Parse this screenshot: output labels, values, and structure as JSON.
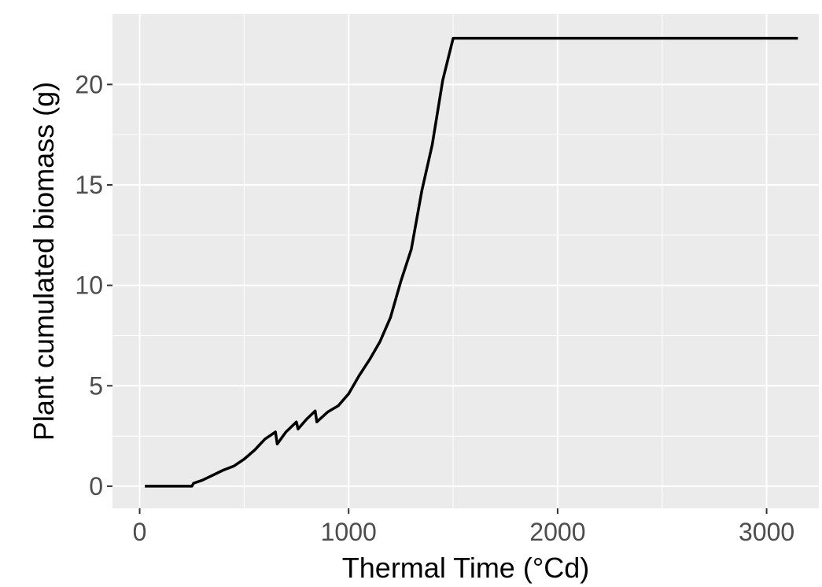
{
  "chart_data": {
    "type": "line",
    "title": "",
    "xlabel": "Thermal Time (°Cd)",
    "ylabel": "Plant cumulated biomass (g)",
    "xlim": [
      -130,
      3250
    ],
    "ylim": [
      -1.1,
      23.5
    ],
    "x_major_ticks": [
      0,
      1000,
      2000,
      3000
    ],
    "x_tick_labels": [
      "0",
      "1000",
      "2000",
      "3000"
    ],
    "x_minor_ticks": [
      500,
      1500,
      2500
    ],
    "y_major_ticks": [
      0,
      5,
      10,
      15,
      20
    ],
    "y_tick_labels": [
      "0",
      "5",
      "10",
      "15",
      "20"
    ],
    "y_minor_ticks": [
      2.5,
      7.5,
      12.5,
      17.5
    ],
    "grid": true,
    "legend": "none",
    "colors": {
      "panel_background": "#ebebeb",
      "grid_line": "#ffffff",
      "series_line": "#000000",
      "tick_label": "#4d4d4d",
      "axis_title": "#000000",
      "tick_mark": "#333333"
    },
    "series": [
      {
        "x": [
          25,
          100,
          200,
          250,
          258,
          300,
          350,
          400,
          450,
          500,
          550,
          600,
          650,
          658,
          700,
          750,
          758,
          800,
          840,
          848,
          900,
          950,
          1000,
          1050,
          1100,
          1150,
          1200,
          1250,
          1300,
          1350,
          1400,
          1450,
          1500,
          1545,
          2000,
          2500,
          3000,
          3150
        ],
        "y": [
          0,
          0,
          0,
          0,
          0.15,
          0.3,
          0.55,
          0.8,
          1.0,
          1.35,
          1.8,
          2.35,
          2.7,
          2.1,
          2.7,
          3.2,
          2.85,
          3.35,
          3.75,
          3.2,
          3.7,
          4.0,
          4.6,
          5.5,
          6.3,
          7.2,
          8.4,
          10.2,
          11.8,
          14.7,
          17.0,
          20.2,
          22.3,
          22.3,
          22.3,
          22.3,
          22.3,
          22.3
        ]
      }
    ]
  }
}
